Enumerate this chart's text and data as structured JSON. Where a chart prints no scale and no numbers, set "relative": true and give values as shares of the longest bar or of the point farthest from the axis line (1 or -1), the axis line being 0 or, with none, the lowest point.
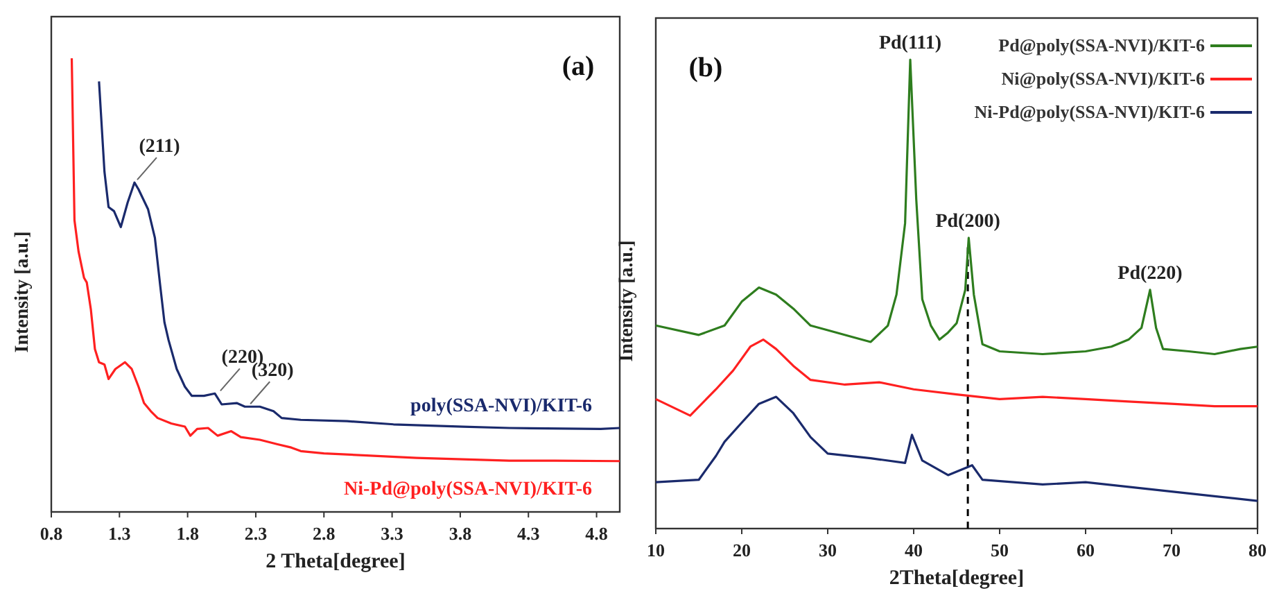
{
  "chart_data": [
    {
      "type": "line",
      "relative": true,
      "xlabel": "2 Theta[degree]",
      "ylabel": "Intensity  [a.u.]",
      "xlim": [
        0.8,
        4.97
      ],
      "xticks": [
        0.8,
        1.3,
        1.8,
        2.3,
        2.8,
        3.3,
        3.8,
        4.3,
        4.8
      ],
      "tick_labels": "x",
      "legend": false,
      "annotations": [
        "(a)",
        {
          "text": "(211)",
          "x": 1.41,
          "y": 0.726
        },
        {
          "text": "(220)",
          "x": 2.02,
          "y": 0.261
        },
        {
          "text": "(320)",
          "x": 2.24,
          "y": 0.232
        }
      ],
      "series": [
        {
          "name": "poly(SSA-NVI)/KIT-6",
          "color": "#1a2a6c",
          "x": [
            1.15,
            1.19,
            1.22,
            1.26,
            1.31,
            1.36,
            1.41,
            1.44,
            1.51,
            1.56,
            1.6,
            1.63,
            1.66,
            1.72,
            1.78,
            1.83,
            1.92,
            2.0,
            2.05,
            2.16,
            2.22,
            2.33,
            2.43,
            2.49,
            2.63,
            2.97,
            3.31,
            3.82,
            4.16,
            4.83,
            4.97
          ],
          "values": [
            0.949,
            0.75,
            0.672,
            0.663,
            0.628,
            0.682,
            0.726,
            0.711,
            0.667,
            0.604,
            0.496,
            0.418,
            0.379,
            0.315,
            0.276,
            0.256,
            0.256,
            0.261,
            0.237,
            0.24,
            0.232,
            0.232,
            0.222,
            0.207,
            0.203,
            0.2,
            0.193,
            0.188,
            0.185,
            0.183,
            0.185
          ]
        },
        {
          "name": "Ni-Pd@poly(SSA-NVI)/KIT-6",
          "color": "#ff2020",
          "x": [
            0.95,
            0.97,
            1.0,
            1.04,
            1.06,
            1.09,
            1.12,
            1.15,
            1.19,
            1.22,
            1.27,
            1.34,
            1.39,
            1.44,
            1.48,
            1.53,
            1.58,
            1.68,
            1.78,
            1.82,
            1.87,
            1.95,
            2.02,
            2.12,
            2.19,
            2.33,
            2.46,
            2.56,
            2.63,
            2.8,
            3.14,
            3.48,
            3.82,
            4.16,
            4.49,
            4.97
          ],
          "values": [
            1.0,
            0.643,
            0.574,
            0.516,
            0.506,
            0.447,
            0.359,
            0.33,
            0.325,
            0.293,
            0.315,
            0.33,
            0.315,
            0.276,
            0.24,
            0.222,
            0.207,
            0.195,
            0.188,
            0.168,
            0.183,
            0.185,
            0.168,
            0.178,
            0.165,
            0.159,
            0.149,
            0.142,
            0.134,
            0.129,
            0.124,
            0.119,
            0.116,
            0.113,
            0.113,
            0.112
          ]
        }
      ]
    },
    {
      "type": "line",
      "relative": true,
      "xlabel": "2Theta[degree]",
      "ylabel": "Intensity  [a.u.]",
      "xlim": [
        10,
        80
      ],
      "xticks": [
        10,
        20,
        30,
        40,
        50,
        60,
        70,
        80
      ],
      "tick_labels": "x",
      "legend": "top right",
      "annotations": [
        "(b)",
        {
          "text": "Pd(111)",
          "x": 39.6,
          "y": 1.0
        },
        {
          "text": "Pd(200)",
          "x": 46.3,
          "y": 0.62
        },
        {
          "text": "Pd(220)",
          "x": 67.5,
          "y": 0.509
        }
      ],
      "ref_lines": [
        {
          "axis": "x",
          "value": 46.3,
          "color": "#000000",
          "line_style": "dashed"
        }
      ],
      "series": [
        {
          "name": "Pd@poly(SSA-NVI)/KIT-6",
          "color": "#2e7d1e",
          "x": [
            10,
            15,
            18,
            20,
            22,
            24,
            26,
            28,
            30,
            33,
            35,
            37,
            38,
            39,
            39.6,
            40.3,
            41,
            42,
            43,
            44,
            45,
            46,
            46.4,
            47,
            48,
            50,
            55,
            60,
            63,
            65,
            66.5,
            67.5,
            68.2,
            69,
            72,
            75,
            78,
            80
          ],
          "values": [
            0.433,
            0.413,
            0.433,
            0.484,
            0.514,
            0.499,
            0.469,
            0.433,
            0.423,
            0.408,
            0.398,
            0.433,
            0.499,
            0.651,
            1.0,
            0.702,
            0.489,
            0.433,
            0.403,
            0.418,
            0.438,
            0.509,
            0.62,
            0.499,
            0.393,
            0.378,
            0.372,
            0.378,
            0.388,
            0.403,
            0.428,
            0.509,
            0.428,
            0.383,
            0.378,
            0.372,
            0.383,
            0.388
          ]
        },
        {
          "name": "Ni@poly(SSA-NVI)/KIT-6",
          "color": "#ff2020",
          "x": [
            10,
            14,
            17,
            19,
            21,
            22.5,
            24,
            26,
            28,
            32,
            36,
            40,
            45,
            50,
            55,
            60,
            65,
            70,
            75,
            80
          ],
          "values": [
            0.276,
            0.241,
            0.297,
            0.337,
            0.388,
            0.403,
            0.383,
            0.347,
            0.317,
            0.307,
            0.312,
            0.297,
            0.286,
            0.276,
            0.281,
            0.276,
            0.271,
            0.266,
            0.261,
            0.261
          ]
        },
        {
          "name": "Ni-Pd@poly(SSA-NVI)/KIT-6",
          "color": "#1a2a6c",
          "x": [
            10,
            15,
            17,
            18,
            20,
            22,
            24,
            26,
            28,
            30,
            35,
            39,
            39.8,
            41,
            44,
            46.8,
            48,
            55,
            60,
            65,
            70,
            75,
            80
          ],
          "values": [
            0.099,
            0.104,
            0.155,
            0.185,
            0.226,
            0.266,
            0.281,
            0.246,
            0.195,
            0.16,
            0.15,
            0.14,
            0.2,
            0.145,
            0.114,
            0.135,
            0.104,
            0.094,
            0.099,
            0.089,
            0.079,
            0.069,
            0.059
          ]
        }
      ]
    }
  ]
}
